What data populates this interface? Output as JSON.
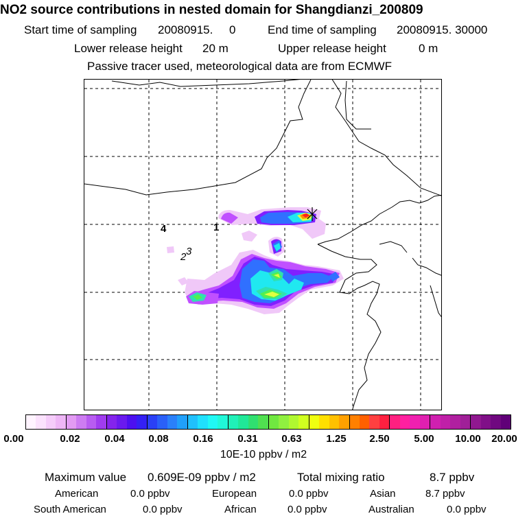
{
  "header": {
    "title": "NO2 source contributions in nested domain for Shangdianzi_200809",
    "start_label": "Start time of sampling",
    "start_value": "20080915.     0",
    "end_label": "End time of sampling",
    "end_value": "20080915. 30000",
    "lower_label": "Lower release height",
    "lower_value": "20 m",
    "upper_label": "Upper release height",
    "upper_value": "0 m",
    "note": "Passive tracer used, meteorological data are from ECMWF"
  },
  "map": {
    "labels": [
      "4",
      "1",
      "2",
      "3"
    ],
    "site_marker": "site-cross-marker",
    "plume_colors": {
      "light": "#f0c8f8",
      "violet": "#c050ff",
      "purple": "#8020ff",
      "blue": "#3070ff",
      "cyan": "#20e8f0",
      "teal": "#30e0b0",
      "green": "#50f050",
      "yellow": "#e0ff40",
      "orange": "#ff9000",
      "red": "#ff2020"
    }
  },
  "colorbar": {
    "colors": [
      "#fff4ff",
      "#fbe2fd",
      "#f5ccfa",
      "#eeb6f6",
      "#e29bf3",
      "#cd7cf2",
      "#b85cf1",
      "#a03cef",
      "#8424ec",
      "#6a1aee",
      "#4c10f0",
      "#3420f4",
      "#2a40f6",
      "#2a60f8",
      "#2a80fa",
      "#20a0fb",
      "#20c0fc",
      "#20e0fd",
      "#20f8f4",
      "#20f8d8",
      "#20f0b8",
      "#20e898",
      "#30e070",
      "#50e050",
      "#70e840",
      "#90f040",
      "#b0f830",
      "#d0ff20",
      "#f0ff10",
      "#ffe000",
      "#ffc000",
      "#ffa000",
      "#ff8000",
      "#ff6000",
      "#ff4040",
      "#ff2040",
      "#ff2080",
      "#ff20a0",
      "#f020b0",
      "#e020b0",
      "#d020b0",
      "#c020a8",
      "#b020a0",
      "#a02098",
      "#901890",
      "#801088",
      "#700880",
      "#600078"
    ],
    "tick_labels": [
      "0.00",
      "0.02",
      "0.04",
      "0.08",
      "0.16",
      "0.31",
      "0.63",
      "1.25",
      "2.50",
      "5.00",
      "10.00",
      "20.00"
    ],
    "units": "10E-10 ppbv / m2"
  },
  "stats": {
    "max_label": "Maximum value",
    "max_value": "0.609E-09 ppbv / m2",
    "total_label": "Total mixing ratio",
    "total_value": "8.7 ppbv",
    "regions": [
      {
        "name": "American",
        "value": "0.0 ppbv"
      },
      {
        "name": "European",
        "value": "0.0 ppbv"
      },
      {
        "name": "Asian",
        "value": "8.7 ppbv"
      },
      {
        "name": "South American",
        "value": "0.0 ppbv"
      },
      {
        "name": "African",
        "value": "0.0 ppbv"
      },
      {
        "name": "Australian",
        "value": "0.0 ppbv"
      }
    ]
  }
}
